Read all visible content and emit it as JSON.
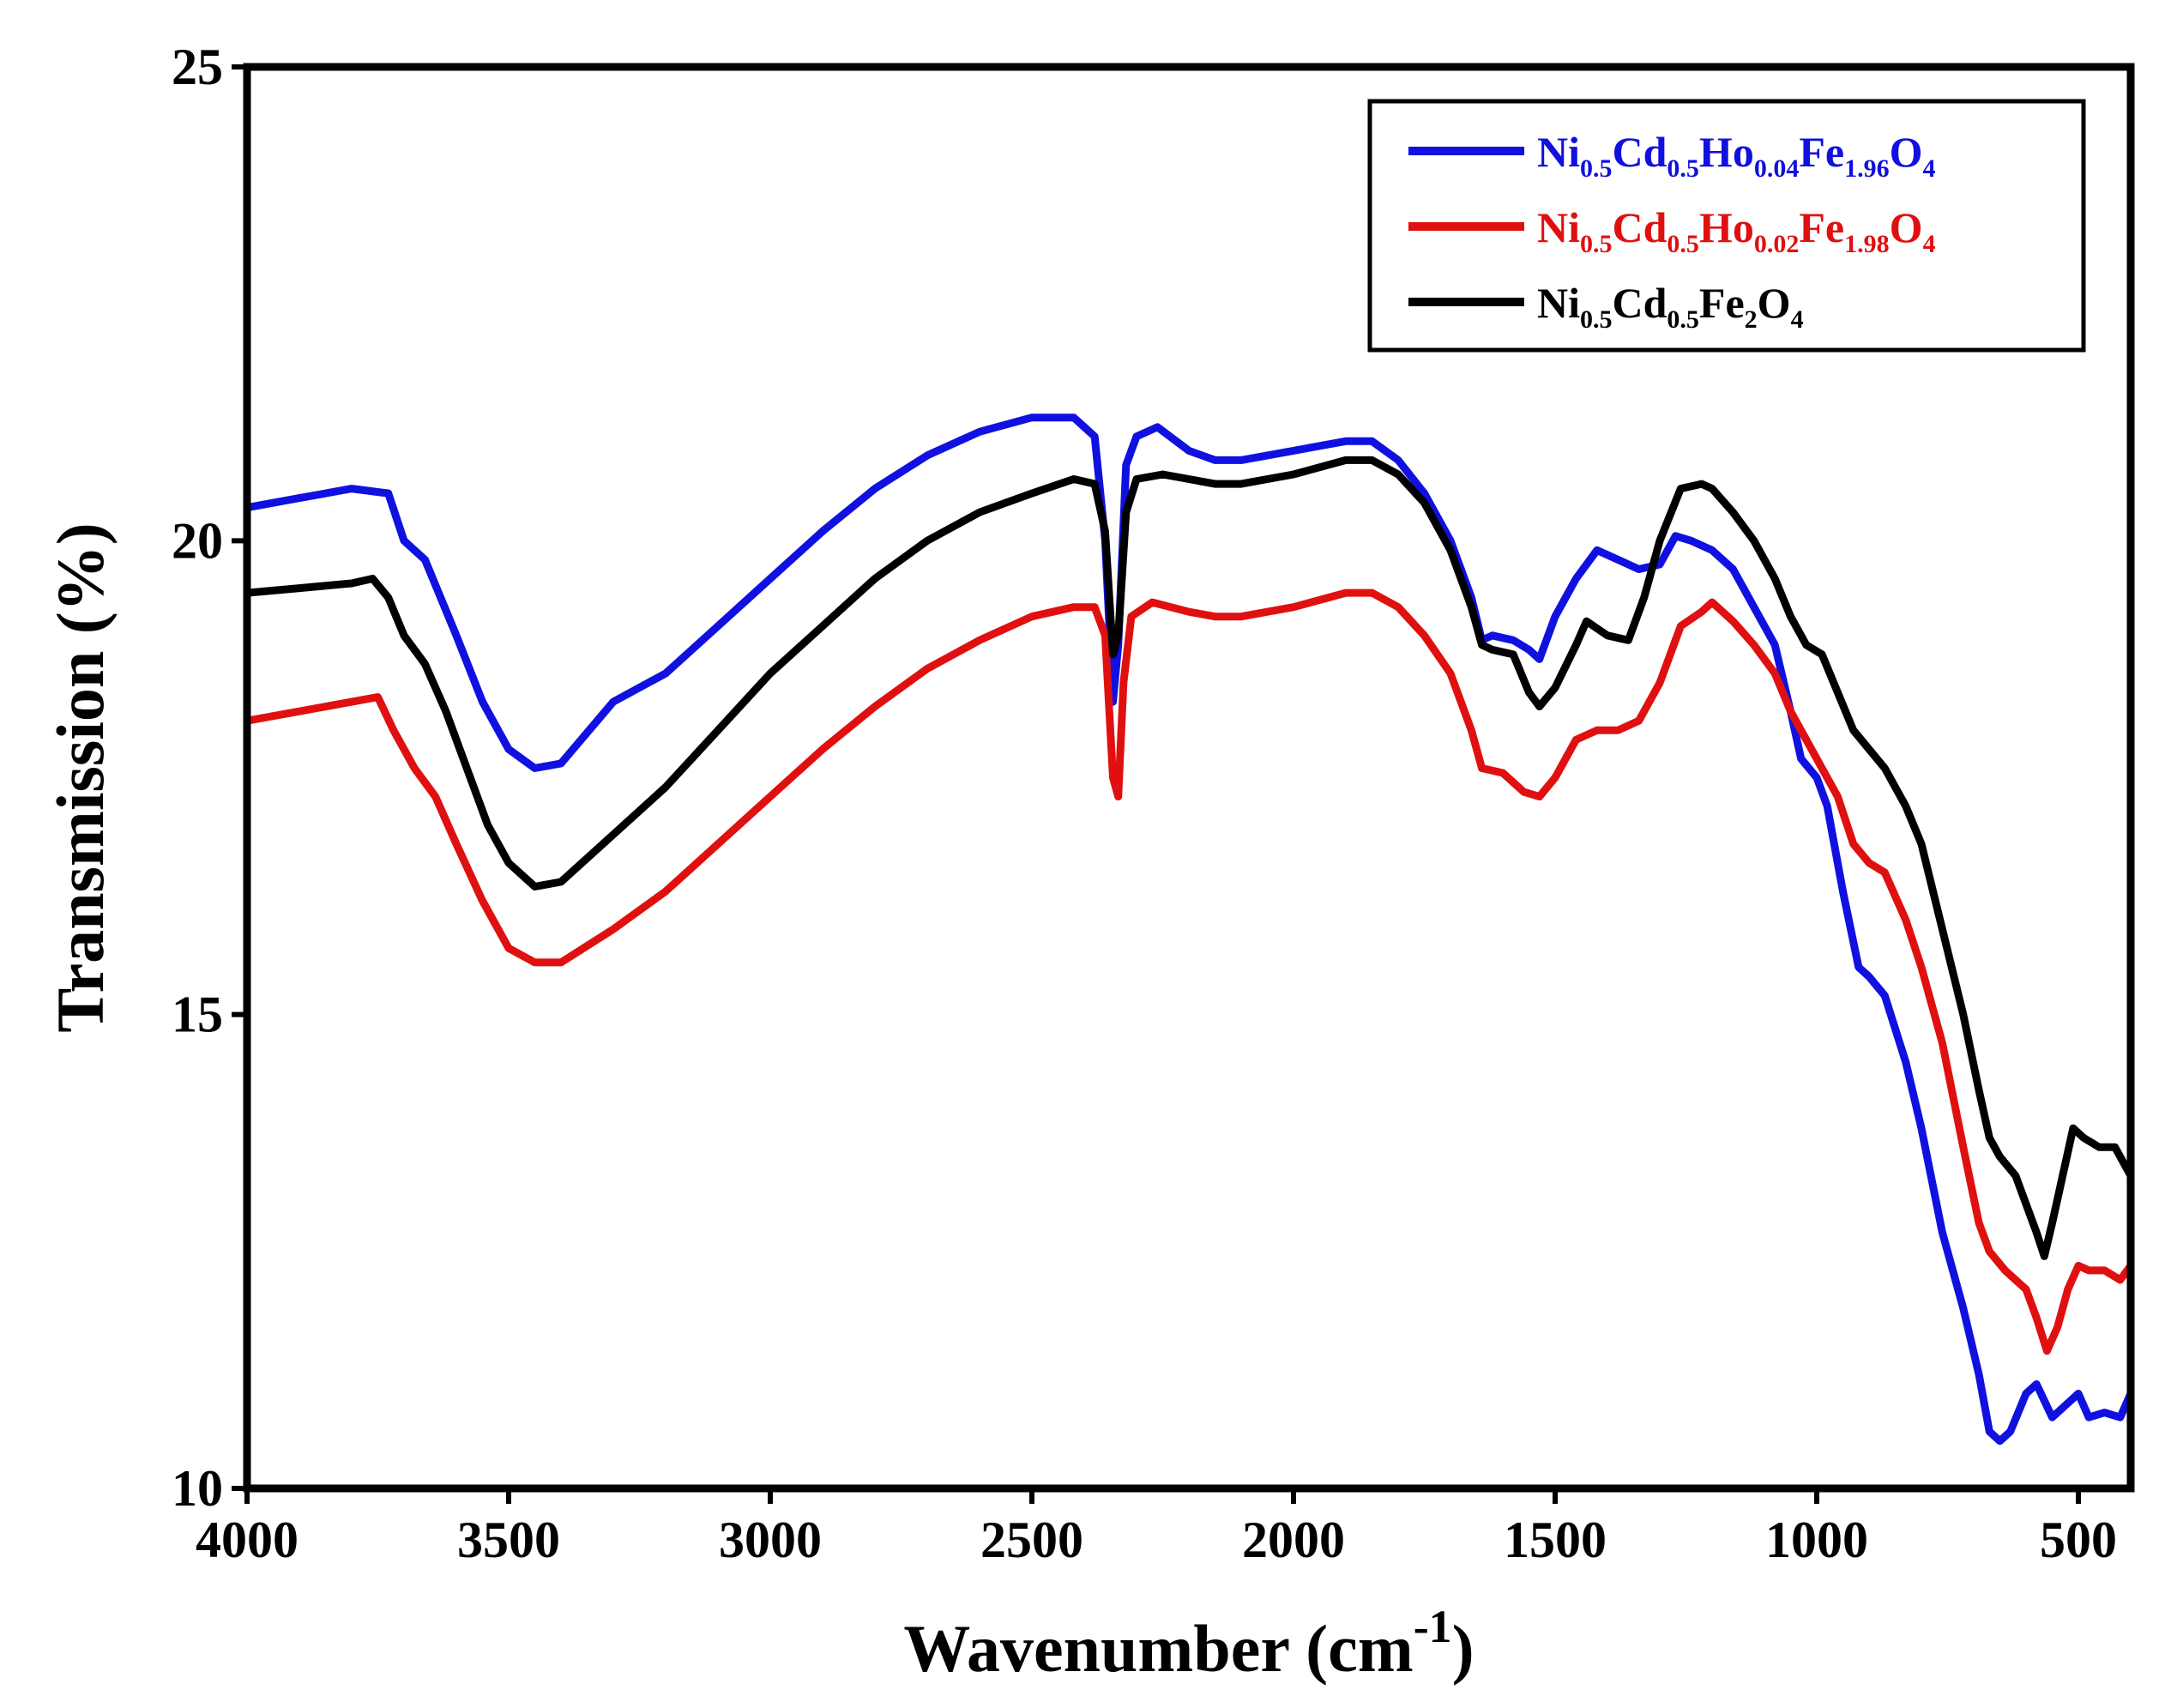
{
  "chart_data": {
    "type": "line",
    "title": "",
    "xlabel": "Wavenumber (cm",
    "xlabel_sup": "-1",
    "xlabel_close": ")",
    "ylabel": "Transmission (%)",
    "xlim": [
      4000,
      400
    ],
    "ylim": [
      10,
      25
    ],
    "x_ticks": [
      4000,
      3500,
      3000,
      2500,
      2000,
      1500,
      1000,
      500
    ],
    "x_tick_labels": [
      "4000",
      "3500",
      "3000",
      "2500",
      "2000",
      "1500",
      "1000",
      "500"
    ],
    "y_ticks": [
      10,
      15,
      20,
      25
    ],
    "y_tick_labels": [
      "10",
      "15",
      "20",
      "25"
    ],
    "legend_position": "top-right",
    "series": [
      {
        "name": "Ni0.5Cd0.5Ho0.04Fe1.96O4",
        "legend_parts": [
          [
            "Ni",
            ""
          ],
          [
            "",
            "0.5"
          ],
          [
            "Cd",
            ""
          ],
          [
            "",
            "0.5"
          ],
          [
            "Ho",
            ""
          ],
          [
            "",
            "0.04"
          ],
          [
            "Fe",
            ""
          ],
          [
            "",
            "1.96"
          ],
          [
            "O",
            ""
          ],
          [
            "",
            "4"
          ]
        ],
        "color": "#1010e0",
        "points": [
          [
            4000,
            20.35
          ],
          [
            3900,
            20.45
          ],
          [
            3800,
            20.55
          ],
          [
            3730,
            20.5
          ],
          [
            3700,
            20.0
          ],
          [
            3660,
            19.8
          ],
          [
            3600,
            19.0
          ],
          [
            3550,
            18.3
          ],
          [
            3500,
            17.8
          ],
          [
            3450,
            17.6
          ],
          [
            3400,
            17.65
          ],
          [
            3300,
            18.3
          ],
          [
            3200,
            18.6
          ],
          [
            3100,
            19.1
          ],
          [
            3000,
            19.6
          ],
          [
            2900,
            20.1
          ],
          [
            2800,
            20.55
          ],
          [
            2700,
            20.9
          ],
          [
            2600,
            21.15
          ],
          [
            2500,
            21.3
          ],
          [
            2420,
            21.3
          ],
          [
            2380,
            21.1
          ],
          [
            2360,
            20.0
          ],
          [
            2345,
            18.3
          ],
          [
            2335,
            18.9
          ],
          [
            2320,
            20.8
          ],
          [
            2300,
            21.1
          ],
          [
            2260,
            21.2
          ],
          [
            2200,
            20.95
          ],
          [
            2150,
            20.85
          ],
          [
            2100,
            20.85
          ],
          [
            2000,
            20.95
          ],
          [
            1900,
            21.05
          ],
          [
            1850,
            21.05
          ],
          [
            1800,
            20.85
          ],
          [
            1750,
            20.5
          ],
          [
            1700,
            20.0
          ],
          [
            1660,
            19.4
          ],
          [
            1640,
            18.95
          ],
          [
            1620,
            19.0
          ],
          [
            1580,
            18.95
          ],
          [
            1550,
            18.85
          ],
          [
            1530,
            18.75
          ],
          [
            1500,
            19.2
          ],
          [
            1460,
            19.6
          ],
          [
            1420,
            19.9
          ],
          [
            1380,
            19.8
          ],
          [
            1340,
            19.7
          ],
          [
            1300,
            19.75
          ],
          [
            1270,
            20.05
          ],
          [
            1240,
            20.0
          ],
          [
            1200,
            19.9
          ],
          [
            1160,
            19.7
          ],
          [
            1120,
            19.3
          ],
          [
            1080,
            18.9
          ],
          [
            1050,
            18.2
          ],
          [
            1030,
            17.7
          ],
          [
            1000,
            17.5
          ],
          [
            980,
            17.2
          ],
          [
            950,
            16.3
          ],
          [
            920,
            15.5
          ],
          [
            900,
            15.4
          ],
          [
            870,
            15.2
          ],
          [
            830,
            14.5
          ],
          [
            800,
            13.8
          ],
          [
            760,
            12.7
          ],
          [
            720,
            11.9
          ],
          [
            690,
            11.2
          ],
          [
            670,
            10.6
          ],
          [
            650,
            10.5
          ],
          [
            630,
            10.6
          ],
          [
            600,
            11.0
          ],
          [
            580,
            11.1
          ],
          [
            550,
            10.75
          ],
          [
            520,
            10.9
          ],
          [
            500,
            11.0
          ],
          [
            480,
            10.75
          ],
          [
            450,
            10.8
          ],
          [
            420,
            10.75
          ],
          [
            400,
            11.0
          ]
        ]
      },
      {
        "name": "Ni0.5Cd0.5Ho0.02Fe1.98O4",
        "legend_parts": [
          [
            "Ni",
            ""
          ],
          [
            "",
            "0.5"
          ],
          [
            "Cd",
            ""
          ],
          [
            "",
            "0.5"
          ],
          [
            "Ho",
            ""
          ],
          [
            "",
            "0.02"
          ],
          [
            "Fe",
            ""
          ],
          [
            "",
            "1.98"
          ],
          [
            "O",
            ""
          ],
          [
            "",
            "4"
          ]
        ],
        "color": "#e01010",
        "points": [
          [
            4000,
            18.1
          ],
          [
            3900,
            18.2
          ],
          [
            3800,
            18.3
          ],
          [
            3750,
            18.35
          ],
          [
            3720,
            18.0
          ],
          [
            3680,
            17.6
          ],
          [
            3640,
            17.3
          ],
          [
            3600,
            16.8
          ],
          [
            3550,
            16.2
          ],
          [
            3500,
            15.7
          ],
          [
            3450,
            15.55
          ],
          [
            3400,
            15.55
          ],
          [
            3300,
            15.9
          ],
          [
            3200,
            16.3
          ],
          [
            3100,
            16.8
          ],
          [
            3000,
            17.3
          ],
          [
            2900,
            17.8
          ],
          [
            2800,
            18.25
          ],
          [
            2700,
            18.65
          ],
          [
            2600,
            18.95
          ],
          [
            2500,
            19.2
          ],
          [
            2420,
            19.3
          ],
          [
            2380,
            19.3
          ],
          [
            2360,
            19.0
          ],
          [
            2345,
            17.5
          ],
          [
            2335,
            17.3
          ],
          [
            2325,
            18.5
          ],
          [
            2310,
            19.2
          ],
          [
            2270,
            19.35
          ],
          [
            2200,
            19.25
          ],
          [
            2150,
            19.2
          ],
          [
            2100,
            19.2
          ],
          [
            2000,
            19.3
          ],
          [
            1900,
            19.45
          ],
          [
            1850,
            19.45
          ],
          [
            1800,
            19.3
          ],
          [
            1750,
            19.0
          ],
          [
            1700,
            18.6
          ],
          [
            1660,
            18.0
          ],
          [
            1640,
            17.6
          ],
          [
            1600,
            17.55
          ],
          [
            1560,
            17.35
          ],
          [
            1530,
            17.3
          ],
          [
            1500,
            17.5
          ],
          [
            1460,
            17.9
          ],
          [
            1420,
            18.0
          ],
          [
            1380,
            18.0
          ],
          [
            1340,
            18.1
          ],
          [
            1300,
            18.5
          ],
          [
            1260,
            19.1
          ],
          [
            1220,
            19.25
          ],
          [
            1200,
            19.35
          ],
          [
            1160,
            19.15
          ],
          [
            1120,
            18.9
          ],
          [
            1080,
            18.6
          ],
          [
            1050,
            18.2
          ],
          [
            1020,
            17.9
          ],
          [
            990,
            17.6
          ],
          [
            960,
            17.3
          ],
          [
            930,
            16.8
          ],
          [
            900,
            16.6
          ],
          [
            870,
            16.5
          ],
          [
            830,
            16.0
          ],
          [
            800,
            15.5
          ],
          [
            760,
            14.7
          ],
          [
            720,
            13.6
          ],
          [
            690,
            12.8
          ],
          [
            670,
            12.5
          ],
          [
            640,
            12.3
          ],
          [
            600,
            12.1
          ],
          [
            580,
            11.8
          ],
          [
            560,
            11.45
          ],
          [
            540,
            11.7
          ],
          [
            520,
            12.1
          ],
          [
            500,
            12.35
          ],
          [
            480,
            12.3
          ],
          [
            450,
            12.3
          ],
          [
            420,
            12.2
          ],
          [
            400,
            12.35
          ]
        ]
      },
      {
        "name": "Ni0.5Cd0.5Fe2O4",
        "legend_parts": [
          [
            "Ni",
            ""
          ],
          [
            "",
            "0.5"
          ],
          [
            "Cd",
            ""
          ],
          [
            "",
            "0.5"
          ],
          [
            "Fe",
            ""
          ],
          [
            "",
            "2"
          ],
          [
            "O",
            ""
          ],
          [
            "",
            "4"
          ]
        ],
        "color": "#000000",
        "points": [
          [
            4000,
            19.45
          ],
          [
            3900,
            19.5
          ],
          [
            3800,
            19.55
          ],
          [
            3760,
            19.6
          ],
          [
            3730,
            19.4
          ],
          [
            3700,
            19.0
          ],
          [
            3660,
            18.7
          ],
          [
            3620,
            18.2
          ],
          [
            3580,
            17.6
          ],
          [
            3540,
            17.0
          ],
          [
            3500,
            16.6
          ],
          [
            3450,
            16.35
          ],
          [
            3400,
            16.4
          ],
          [
            3300,
            16.9
          ],
          [
            3200,
            17.4
          ],
          [
            3100,
            18.0
          ],
          [
            3000,
            18.6
          ],
          [
            2900,
            19.1
          ],
          [
            2800,
            19.6
          ],
          [
            2700,
            20.0
          ],
          [
            2600,
            20.3
          ],
          [
            2500,
            20.5
          ],
          [
            2420,
            20.65
          ],
          [
            2380,
            20.6
          ],
          [
            2360,
            20.1
          ],
          [
            2345,
            18.8
          ],
          [
            2335,
            19.0
          ],
          [
            2320,
            20.3
          ],
          [
            2300,
            20.65
          ],
          [
            2250,
            20.7
          ],
          [
            2200,
            20.65
          ],
          [
            2150,
            20.6
          ],
          [
            2100,
            20.6
          ],
          [
            2000,
            20.7
          ],
          [
            1900,
            20.85
          ],
          [
            1850,
            20.85
          ],
          [
            1800,
            20.7
          ],
          [
            1750,
            20.4
          ],
          [
            1700,
            19.9
          ],
          [
            1660,
            19.3
          ],
          [
            1640,
            18.9
          ],
          [
            1620,
            18.85
          ],
          [
            1580,
            18.8
          ],
          [
            1550,
            18.4
          ],
          [
            1530,
            18.25
          ],
          [
            1500,
            18.45
          ],
          [
            1460,
            18.9
          ],
          [
            1440,
            19.15
          ],
          [
            1400,
            19.0
          ],
          [
            1360,
            18.95
          ],
          [
            1330,
            19.4
          ],
          [
            1300,
            20.0
          ],
          [
            1260,
            20.55
          ],
          [
            1220,
            20.6
          ],
          [
            1200,
            20.55
          ],
          [
            1160,
            20.3
          ],
          [
            1120,
            20.0
          ],
          [
            1080,
            19.6
          ],
          [
            1050,
            19.2
          ],
          [
            1020,
            18.9
          ],
          [
            990,
            18.8
          ],
          [
            960,
            18.4
          ],
          [
            930,
            18.0
          ],
          [
            900,
            17.8
          ],
          [
            870,
            17.6
          ],
          [
            830,
            17.2
          ],
          [
            800,
            16.8
          ],
          [
            760,
            15.9
          ],
          [
            720,
            15.0
          ],
          [
            690,
            14.2
          ],
          [
            670,
            13.7
          ],
          [
            650,
            13.5
          ],
          [
            620,
            13.3
          ],
          [
            600,
            13.0
          ],
          [
            580,
            12.7
          ],
          [
            565,
            12.45
          ],
          [
            550,
            12.8
          ],
          [
            530,
            13.3
          ],
          [
            510,
            13.8
          ],
          [
            490,
            13.7
          ],
          [
            460,
            13.6
          ],
          [
            430,
            13.6
          ],
          [
            400,
            13.3
          ]
        ]
      }
    ]
  }
}
